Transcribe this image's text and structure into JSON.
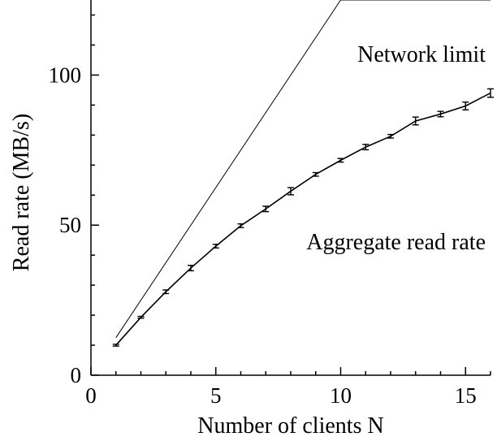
{
  "chart_data": {
    "type": "line",
    "title": "",
    "xlabel": "Number of clients N",
    "ylabel": "Read rate (MB/s)",
    "xlim": [
      0,
      16
    ],
    "ylim": [
      0,
      125
    ],
    "x_ticks": [
      0,
      5,
      10,
      15
    ],
    "y_ticks": [
      0,
      50,
      100
    ],
    "x_minor_step": 1,
    "y_minor_step": 10,
    "grid": false,
    "legend": "none",
    "series": [
      {
        "name": "Network limit",
        "x": [
          1,
          10,
          11,
          16
        ],
        "y": [
          12.5,
          125,
          125,
          125
        ]
      },
      {
        "name": "Aggregate read rate",
        "x": [
          1,
          2,
          3,
          4,
          5,
          6,
          7,
          8,
          9,
          10,
          11,
          12,
          13,
          14,
          15,
          16
        ],
        "y": [
          10.0,
          19.3,
          27.8,
          35.7,
          43.0,
          49.8,
          55.4,
          61.3,
          66.9,
          71.6,
          76.0,
          79.6,
          84.7,
          87.0,
          89.7,
          94.0
        ],
        "err": [
          0.3,
          0.3,
          0.6,
          0.9,
          0.6,
          0.6,
          0.9,
          1.2,
          0.6,
          0.6,
          0.9,
          0.6,
          1.3,
          0.9,
          1.3,
          1.4
        ]
      }
    ],
    "annotations": [
      {
        "text": "Network limit",
        "series": "Network limit"
      },
      {
        "text": "Aggregate read rate",
        "series": "Aggregate read rate"
      }
    ]
  }
}
